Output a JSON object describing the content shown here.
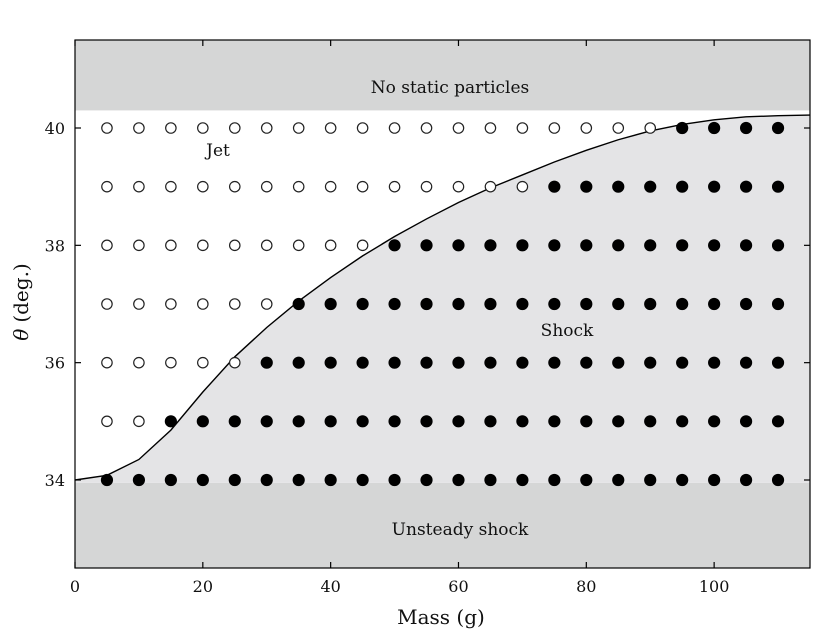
{
  "chart_data": {
    "type": "scatter",
    "title": "",
    "xlabel": "Mass (g)",
    "ylabel_symbol": "θ",
    "ylabel_unit": "(deg.)",
    "xlim": [
      0,
      115
    ],
    "ylim": [
      32.5,
      41.5
    ],
    "xticks": [
      0,
      20,
      40,
      60,
      80,
      100
    ],
    "yticks": [
      34,
      36,
      38,
      40
    ],
    "grid": false,
    "colors": {
      "region_gray": "#d5d6d6",
      "shock_fill": "#e4e4e6",
      "marker": "#000000",
      "open_marker_edge": "#222222"
    },
    "regions": {
      "no_static": {
        "label": "No static particles",
        "y_from": 40.3,
        "y_to": 41.5
      },
      "unsteady": {
        "label": "Unsteady shock",
        "y_from": 32.5,
        "y_to": 33.95
      },
      "jet": {
        "label": "Jet"
      },
      "shock": {
        "label": "Shock"
      }
    },
    "boundary_curve": [
      [
        0,
        34.0
      ],
      [
        5,
        34.08
      ],
      [
        10,
        34.35
      ],
      [
        15,
        34.85
      ],
      [
        20,
        35.5
      ],
      [
        25,
        36.1
      ],
      [
        30,
        36.6
      ],
      [
        35,
        37.05
      ],
      [
        40,
        37.45
      ],
      [
        45,
        37.82
      ],
      [
        50,
        38.15
      ],
      [
        55,
        38.45
      ],
      [
        60,
        38.73
      ],
      [
        65,
        38.98
      ],
      [
        70,
        39.2
      ],
      [
        75,
        39.42
      ],
      [
        80,
        39.62
      ],
      [
        85,
        39.8
      ],
      [
        90,
        39.95
      ],
      [
        95,
        40.06
      ],
      [
        100,
        40.14
      ],
      [
        105,
        40.19
      ],
      [
        110,
        40.21
      ],
      [
        115,
        40.22
      ]
    ],
    "series": [
      {
        "marker": "open",
        "points": [
          [
            5,
            40
          ],
          [
            10,
            40
          ],
          [
            15,
            40
          ],
          [
            20,
            40
          ],
          [
            25,
            40
          ],
          [
            30,
            40
          ],
          [
            35,
            40
          ],
          [
            40,
            40
          ],
          [
            45,
            40
          ],
          [
            50,
            40
          ],
          [
            55,
            40
          ],
          [
            60,
            40
          ],
          [
            65,
            40
          ],
          [
            70,
            40
          ],
          [
            75,
            40
          ],
          [
            80,
            40
          ],
          [
            85,
            40
          ],
          [
            90,
            40
          ],
          [
            5,
            39
          ],
          [
            10,
            39
          ],
          [
            15,
            39
          ],
          [
            20,
            39
          ],
          [
            25,
            39
          ],
          [
            30,
            39
          ],
          [
            35,
            39
          ],
          [
            40,
            39
          ],
          [
            45,
            39
          ],
          [
            50,
            39
          ],
          [
            55,
            39
          ],
          [
            60,
            39
          ],
          [
            65,
            39
          ],
          [
            70,
            39
          ],
          [
            5,
            38
          ],
          [
            10,
            38
          ],
          [
            15,
            38
          ],
          [
            20,
            38
          ],
          [
            25,
            38
          ],
          [
            30,
            38
          ],
          [
            35,
            38
          ],
          [
            40,
            38
          ],
          [
            45,
            38
          ],
          [
            5,
            37
          ],
          [
            10,
            37
          ],
          [
            15,
            37
          ],
          [
            20,
            37
          ],
          [
            25,
            37
          ],
          [
            30,
            37
          ],
          [
            5,
            36
          ],
          [
            10,
            36
          ],
          [
            15,
            36
          ],
          [
            20,
            36
          ],
          [
            25,
            36
          ],
          [
            5,
            35
          ],
          [
            10,
            35
          ]
        ]
      },
      {
        "marker": "filled",
        "points": [
          [
            95,
            40
          ],
          [
            100,
            40
          ],
          [
            105,
            40
          ],
          [
            110,
            40
          ],
          [
            75,
            39
          ],
          [
            80,
            39
          ],
          [
            85,
            39
          ],
          [
            90,
            39
          ],
          [
            95,
            39
          ],
          [
            100,
            39
          ],
          [
            105,
            39
          ],
          [
            110,
            39
          ],
          [
            50,
            38
          ],
          [
            55,
            38
          ],
          [
            60,
            38
          ],
          [
            65,
            38
          ],
          [
            70,
            38
          ],
          [
            75,
            38
          ],
          [
            80,
            38
          ],
          [
            85,
            38
          ],
          [
            90,
            38
          ],
          [
            95,
            38
          ],
          [
            100,
            38
          ],
          [
            105,
            38
          ],
          [
            110,
            38
          ],
          [
            35,
            37
          ],
          [
            40,
            37
          ],
          [
            45,
            37
          ],
          [
            50,
            37
          ],
          [
            55,
            37
          ],
          [
            60,
            37
          ],
          [
            65,
            37
          ],
          [
            70,
            37
          ],
          [
            75,
            37
          ],
          [
            80,
            37
          ],
          [
            85,
            37
          ],
          [
            90,
            37
          ],
          [
            95,
            37
          ],
          [
            100,
            37
          ],
          [
            105,
            37
          ],
          [
            110,
            37
          ],
          [
            30,
            36
          ],
          [
            35,
            36
          ],
          [
            40,
            36
          ],
          [
            45,
            36
          ],
          [
            50,
            36
          ],
          [
            55,
            36
          ],
          [
            60,
            36
          ],
          [
            65,
            36
          ],
          [
            70,
            36
          ],
          [
            75,
            36
          ],
          [
            80,
            36
          ],
          [
            85,
            36
          ],
          [
            90,
            36
          ],
          [
            95,
            36
          ],
          [
            100,
            36
          ],
          [
            105,
            36
          ],
          [
            110,
            36
          ],
          [
            15,
            35
          ],
          [
            20,
            35
          ],
          [
            25,
            35
          ],
          [
            30,
            35
          ],
          [
            35,
            35
          ],
          [
            40,
            35
          ],
          [
            45,
            35
          ],
          [
            50,
            35
          ],
          [
            55,
            35
          ],
          [
            60,
            35
          ],
          [
            65,
            35
          ],
          [
            70,
            35
          ],
          [
            75,
            35
          ],
          [
            80,
            35
          ],
          [
            85,
            35
          ],
          [
            90,
            35
          ],
          [
            95,
            35
          ],
          [
            100,
            35
          ],
          [
            105,
            35
          ],
          [
            110,
            35
          ],
          [
            5,
            34
          ],
          [
            10,
            34
          ],
          [
            15,
            34
          ],
          [
            20,
            34
          ],
          [
            25,
            34
          ],
          [
            30,
            34
          ],
          [
            35,
            34
          ],
          [
            40,
            34
          ],
          [
            45,
            34
          ],
          [
            50,
            34
          ],
          [
            55,
            34
          ],
          [
            60,
            34
          ],
          [
            65,
            34
          ],
          [
            70,
            34
          ],
          [
            75,
            34
          ],
          [
            80,
            34
          ],
          [
            85,
            34
          ],
          [
            90,
            34
          ],
          [
            95,
            34
          ],
          [
            100,
            34
          ],
          [
            105,
            34
          ],
          [
            110,
            34
          ]
        ]
      }
    ]
  }
}
